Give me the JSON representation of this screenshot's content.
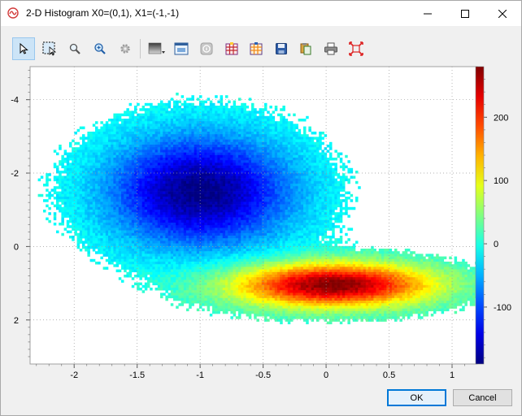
{
  "window": {
    "title": "2-D Histogram X0=(0,1), X1=(-1,-1)",
    "controls": [
      "minimize-icon",
      "maximize-icon",
      "close-icon"
    ]
  },
  "toolbar": {
    "items": [
      {
        "name": "select-arrow-tool-icon",
        "active": true
      },
      {
        "name": "zoom-box-tool-icon",
        "active": false
      },
      {
        "name": "magnifier-tool-icon",
        "active": false
      },
      {
        "name": "zoom-in-tool-icon",
        "active": false
      },
      {
        "name": "settings-gear-icon",
        "active": false
      },
      {
        "name": "colormap-dropdown-icon",
        "active": false
      },
      {
        "name": "window-layout-icon",
        "active": false
      },
      {
        "name": "info-icon",
        "active": false
      },
      {
        "name": "grid-red-icon",
        "active": false
      },
      {
        "name": "grid-orange-icon",
        "active": false
      },
      {
        "name": "save-icon",
        "active": false
      },
      {
        "name": "copy-icon",
        "active": false
      },
      {
        "name": "print-icon",
        "active": false
      },
      {
        "name": "fit-extent-icon",
        "active": false
      }
    ]
  },
  "chart_data": {
    "type": "heatmap",
    "title": "",
    "xlabel": "",
    "ylabel": "",
    "x_range": [
      -2.35,
      1.2
    ],
    "y_range": [
      -4.9,
      3.2
    ],
    "y_axis_inverted": true,
    "x_ticks": [
      -2,
      -1.5,
      -1,
      -0.5,
      0,
      0.5,
      1
    ],
    "x_tick_labels": [
      "-2",
      "-1.5",
      "-1",
      "-0.5",
      "0",
      "0.5",
      "1"
    ],
    "y_ticks": [
      -4,
      -2,
      0,
      2
    ],
    "y_tick_labels": [
      "-4",
      "-2",
      "0",
      "2"
    ],
    "colorbar": {
      "range": [
        -190,
        280
      ],
      "ticks": [
        200,
        100,
        0,
        -100
      ],
      "tick_labels": [
        "200",
        "100",
        "0",
        "-100"
      ],
      "colormap": "jet"
    },
    "clusters": [
      {
        "center_x": -1.0,
        "center_y": -1.5,
        "peak_value": -190,
        "description_sign": "negative"
      },
      {
        "center_x": 0.05,
        "center_y": 1.05,
        "peak_value": 280,
        "description_sign": "positive"
      }
    ],
    "grid": true
  },
  "buttons": {
    "ok": "OK",
    "cancel": "Cancel"
  }
}
